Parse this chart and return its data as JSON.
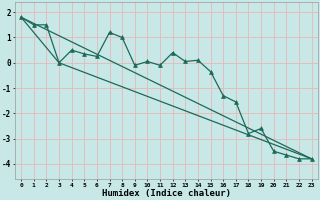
{
  "title": "",
  "xlabel": "Humidex (Indice chaleur)",
  "bg_color": "#c8e8e8",
  "grid_color": "#e8b8b8",
  "line_color": "#1a6a5a",
  "xlim": [
    -0.5,
    23.5
  ],
  "ylim": [
    -4.6,
    2.4
  ],
  "yticks": [
    -4,
    -3,
    -2,
    -1,
    0,
    1,
    2
  ],
  "xticks": [
    0,
    1,
    2,
    3,
    4,
    5,
    6,
    7,
    8,
    9,
    10,
    11,
    12,
    13,
    14,
    15,
    16,
    17,
    18,
    19,
    20,
    21,
    22,
    23
  ],
  "line1_x": [
    0,
    1,
    2,
    3,
    4,
    5,
    6,
    7,
    8,
    9,
    10,
    11,
    12,
    13,
    14,
    15,
    16,
    17,
    18,
    19,
    20,
    21,
    22,
    23
  ],
  "line1_y": [
    1.8,
    1.5,
    1.5,
    0.0,
    0.5,
    0.35,
    0.25,
    1.2,
    1.0,
    -0.1,
    0.05,
    -0.1,
    0.4,
    0.05,
    0.1,
    -0.35,
    -1.3,
    -1.55,
    -2.8,
    -2.6,
    -3.5,
    -3.65,
    -3.8,
    -3.8
  ],
  "line2_x": [
    0,
    3,
    23
  ],
  "line2_y": [
    1.8,
    0.0,
    -3.8
  ],
  "line3_x": [
    0,
    23
  ],
  "line3_y": [
    1.8,
    -3.8
  ]
}
